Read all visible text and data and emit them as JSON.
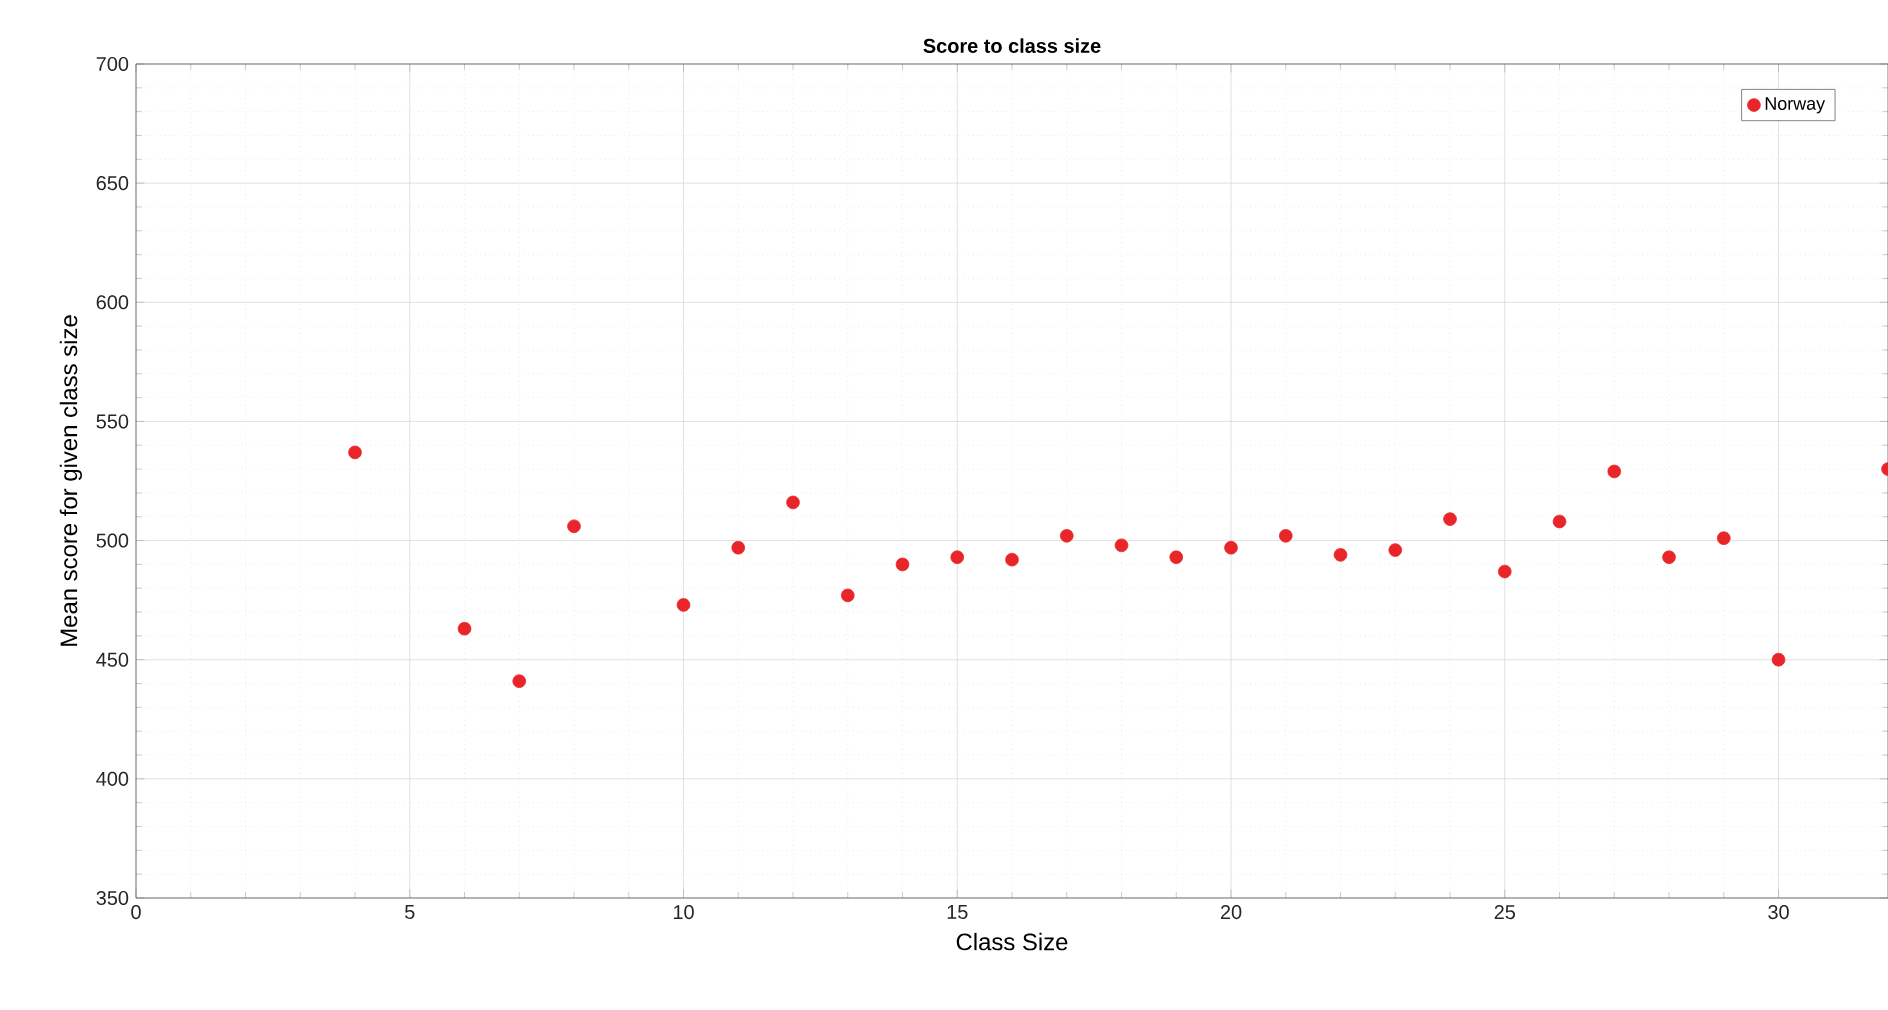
{
  "chart_data": {
    "type": "scatter",
    "title": "Score to class size",
    "xlabel": "Class Size",
    "ylabel": "Mean score for given class size",
    "x": [
      4,
      6,
      7,
      8,
      10,
      11,
      12,
      13,
      14,
      15,
      16,
      17,
      18,
      19,
      20,
      21,
      22,
      23,
      24,
      25,
      26,
      27,
      28,
      29,
      30,
      32
    ],
    "series": [
      {
        "name": "Norway",
        "color": "#e8262a",
        "values": [
          537,
          463,
          441,
          506,
          473,
          497,
          516,
          477,
          490,
          493,
          492,
          502,
          498,
          493,
          497,
          502,
          494,
          496,
          509,
          487,
          508,
          529,
          493,
          501,
          450,
          530
        ]
      }
    ],
    "xlim": [
      0,
      32
    ],
    "xticks": [
      0,
      5,
      10,
      15,
      20,
      25,
      30
    ],
    "ylim": [
      350,
      700
    ],
    "yticks": [
      350,
      400,
      450,
      500,
      550,
      600,
      650,
      700
    ],
    "grid": true,
    "legend": "top right",
    "marker": "circle"
  }
}
